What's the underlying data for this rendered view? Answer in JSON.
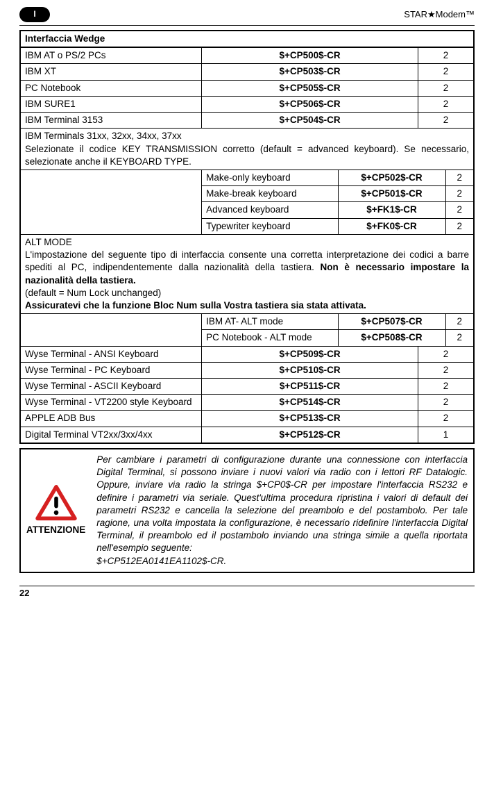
{
  "header": {
    "chapter": "I",
    "product": "STAR★Modem™"
  },
  "sectionTitle": "Interfaccia Wedge",
  "rows1": [
    {
      "label": "IBM AT o PS/2 PCs",
      "code": "$+CP500$-CR",
      "n": "2"
    },
    {
      "label": "IBM XT",
      "code": "$+CP503$-CR",
      "n": "2"
    },
    {
      "label": "PC Notebook",
      "code": "$+CP505$-CR",
      "n": "2"
    },
    {
      "label": "IBM SURE1",
      "code": "$+CP506$-CR",
      "n": "2"
    },
    {
      "label": "IBM Terminal 3153",
      "code": "$+CP504$-CR",
      "n": "2"
    }
  ],
  "note1": "IBM Terminals 31xx, 32xx, 34xx, 37xx\nSelezionate il codice KEY TRANSMISSION corretto (default = advanced keyboard). Se necessario, selezionate anche il KEYBOARD TYPE.",
  "subrows1": [
    {
      "label": "Make-only keyboard",
      "code": "$+CP502$-CR",
      "n": "2"
    },
    {
      "label": "Make-break keyboard",
      "code": "$+CP501$-CR",
      "n": "2"
    },
    {
      "label": "Advanced keyboard",
      "code": "$+FK1$-CR",
      "n": "2"
    },
    {
      "label": "Typewriter keyboard",
      "code": "$+FK0$-CR",
      "n": "2"
    }
  ],
  "altMode": {
    "title": "ALT MODE",
    "body1": "L'impostazione del seguente tipo di interfaccia consente una corretta interpretazione dei codici a barre spediti al PC, indipendentemente dalla nazionalità della tastiera. ",
    "bold1": "Non è necessario impostare la nazionalità della tastiera.",
    "body2": "(default = Num Lock unchanged)",
    "bold2": "Assicuratevi che la funzione Bloc Num sulla Vostra tastiera sia stata attivata."
  },
  "subrows2": [
    {
      "label": "IBM AT- ALT mode",
      "code": "$+CP507$-CR",
      "n": "2"
    },
    {
      "label": "PC Notebook - ALT mode",
      "code": "$+CP508$-CR",
      "n": "2"
    }
  ],
  "rows2": [
    {
      "label": "Wyse Terminal - ANSI Keyboard",
      "code": "$+CP509$-CR",
      "n": "2"
    },
    {
      "label": "Wyse Terminal - PC Keyboard",
      "code": "$+CP510$-CR",
      "n": "2"
    },
    {
      "label": "Wyse Terminal - ASCII Keyboard",
      "code": "$+CP511$-CR",
      "n": "2"
    },
    {
      "label": "Wyse Terminal - VT2200 style Keyboard",
      "code": "$+CP514$-CR",
      "n": "2"
    },
    {
      "label": "APPLE ADB Bus",
      "code": "$+CP513$-CR",
      "n": "2"
    },
    {
      "label": "Digital Terminal VT2xx/3xx/4xx",
      "code": "$+CP512$-CR",
      "n": "1"
    }
  ],
  "attention": {
    "label": "ATTENZIONE",
    "text": "Per cambiare i parametri di configurazione durante una connessione con interfaccia Digital Terminal, si possono inviare i nuovi valori via radio con i lettori RF Datalogic. Oppure, inviare via radio la stringa $+CP0$-CR per impostare l'interfaccia RS232 e definire i parametri via seriale. Quest'ultima procedura ripristina i valori di default dei parametri RS232 e cancella la selezione del preambolo e del postambolo. Per tale ragione, una volta impostata la configurazione, è necessario ridefinire l'interfaccia Digital Terminal, il preambolo ed il postambolo inviando una stringa simile a quella riportata nell'esempio seguente:",
    "code": "$+CP512EA0141EA1102$-CR."
  },
  "pageNumber": "22",
  "colors": {
    "text": "#000000",
    "bg": "#ffffff",
    "warnRed": "#d62020"
  }
}
